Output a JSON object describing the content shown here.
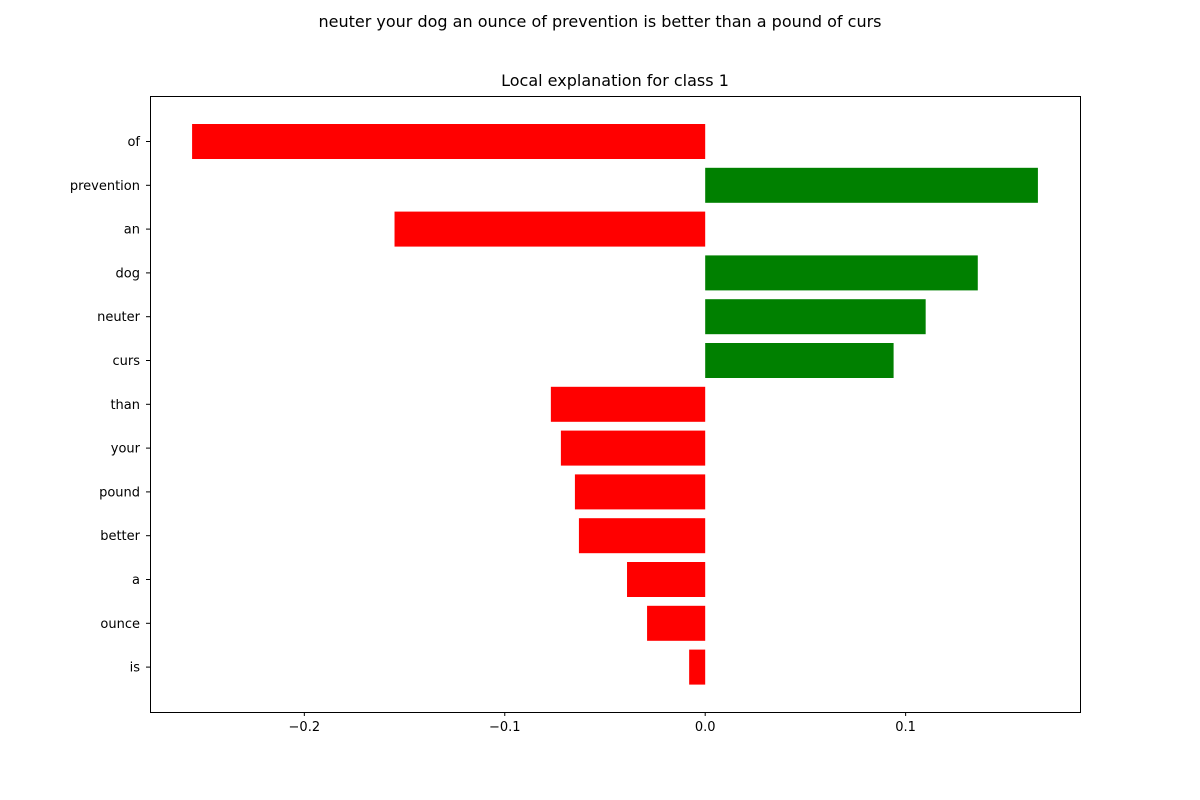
{
  "suptitle": "neuter your dog an ounce of prevention is better than a pound of curs",
  "chart_data": {
    "type": "bar",
    "orientation": "horizontal",
    "title": "Local explanation for class 1",
    "xlabel": "",
    "ylabel": "",
    "categories": [
      "of",
      "prevention",
      "an",
      "dog",
      "neuter",
      "curs",
      "than",
      "your",
      "pound",
      "better",
      "a",
      "ounce",
      "is"
    ],
    "values": [
      -0.256,
      0.166,
      -0.155,
      0.136,
      0.11,
      0.094,
      -0.077,
      -0.072,
      -0.065,
      -0.063,
      -0.039,
      -0.029,
      -0.008
    ],
    "xlim": [
      -0.277,
      0.187
    ],
    "xticks": [
      -0.2,
      -0.1,
      0.0,
      0.1
    ],
    "xtick_labels": [
      "−0.2",
      "−0.1",
      "0.0",
      "0.1"
    ],
    "grid": false,
    "colors": {
      "positive": "#008000",
      "negative": "#ff0000"
    }
  }
}
